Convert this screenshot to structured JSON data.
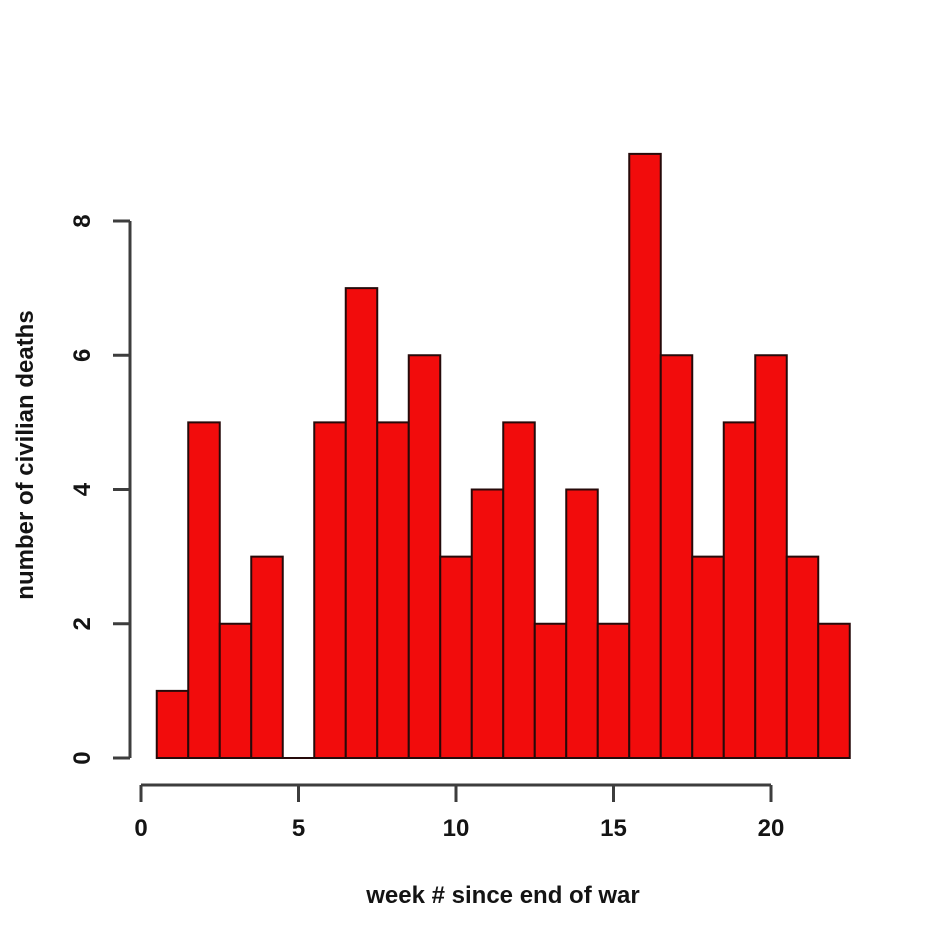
{
  "chart_data": {
    "type": "bar",
    "style": "histogram",
    "title": "",
    "xlabel": "week # since end of war",
    "ylabel": "number of civilian deaths",
    "categories": [
      1,
      2,
      3,
      4,
      5,
      6,
      7,
      8,
      9,
      10,
      11,
      12,
      13,
      14,
      15,
      16,
      17,
      18,
      19,
      20,
      21,
      22
    ],
    "values": [
      1,
      5,
      2,
      3,
      0,
      5,
      7,
      5,
      6,
      3,
      4,
      5,
      2,
      4,
      2,
      9,
      6,
      3,
      5,
      6,
      3,
      2
    ],
    "x_ticks": [
      0,
      5,
      10,
      15,
      20
    ],
    "y_ticks": [
      0,
      2,
      4,
      6,
      8
    ],
    "xlim": [
      0.5,
      22.5
    ],
    "ylim": [
      0,
      9
    ],
    "bar_width": 1,
    "grid": false,
    "legend": "none"
  },
  "colors": {
    "background": "#ffffff",
    "bar_fill": "#f20c0c",
    "bar_border": "#260a0a",
    "axis_line": "#3d3d3d",
    "text": "#141414"
  }
}
